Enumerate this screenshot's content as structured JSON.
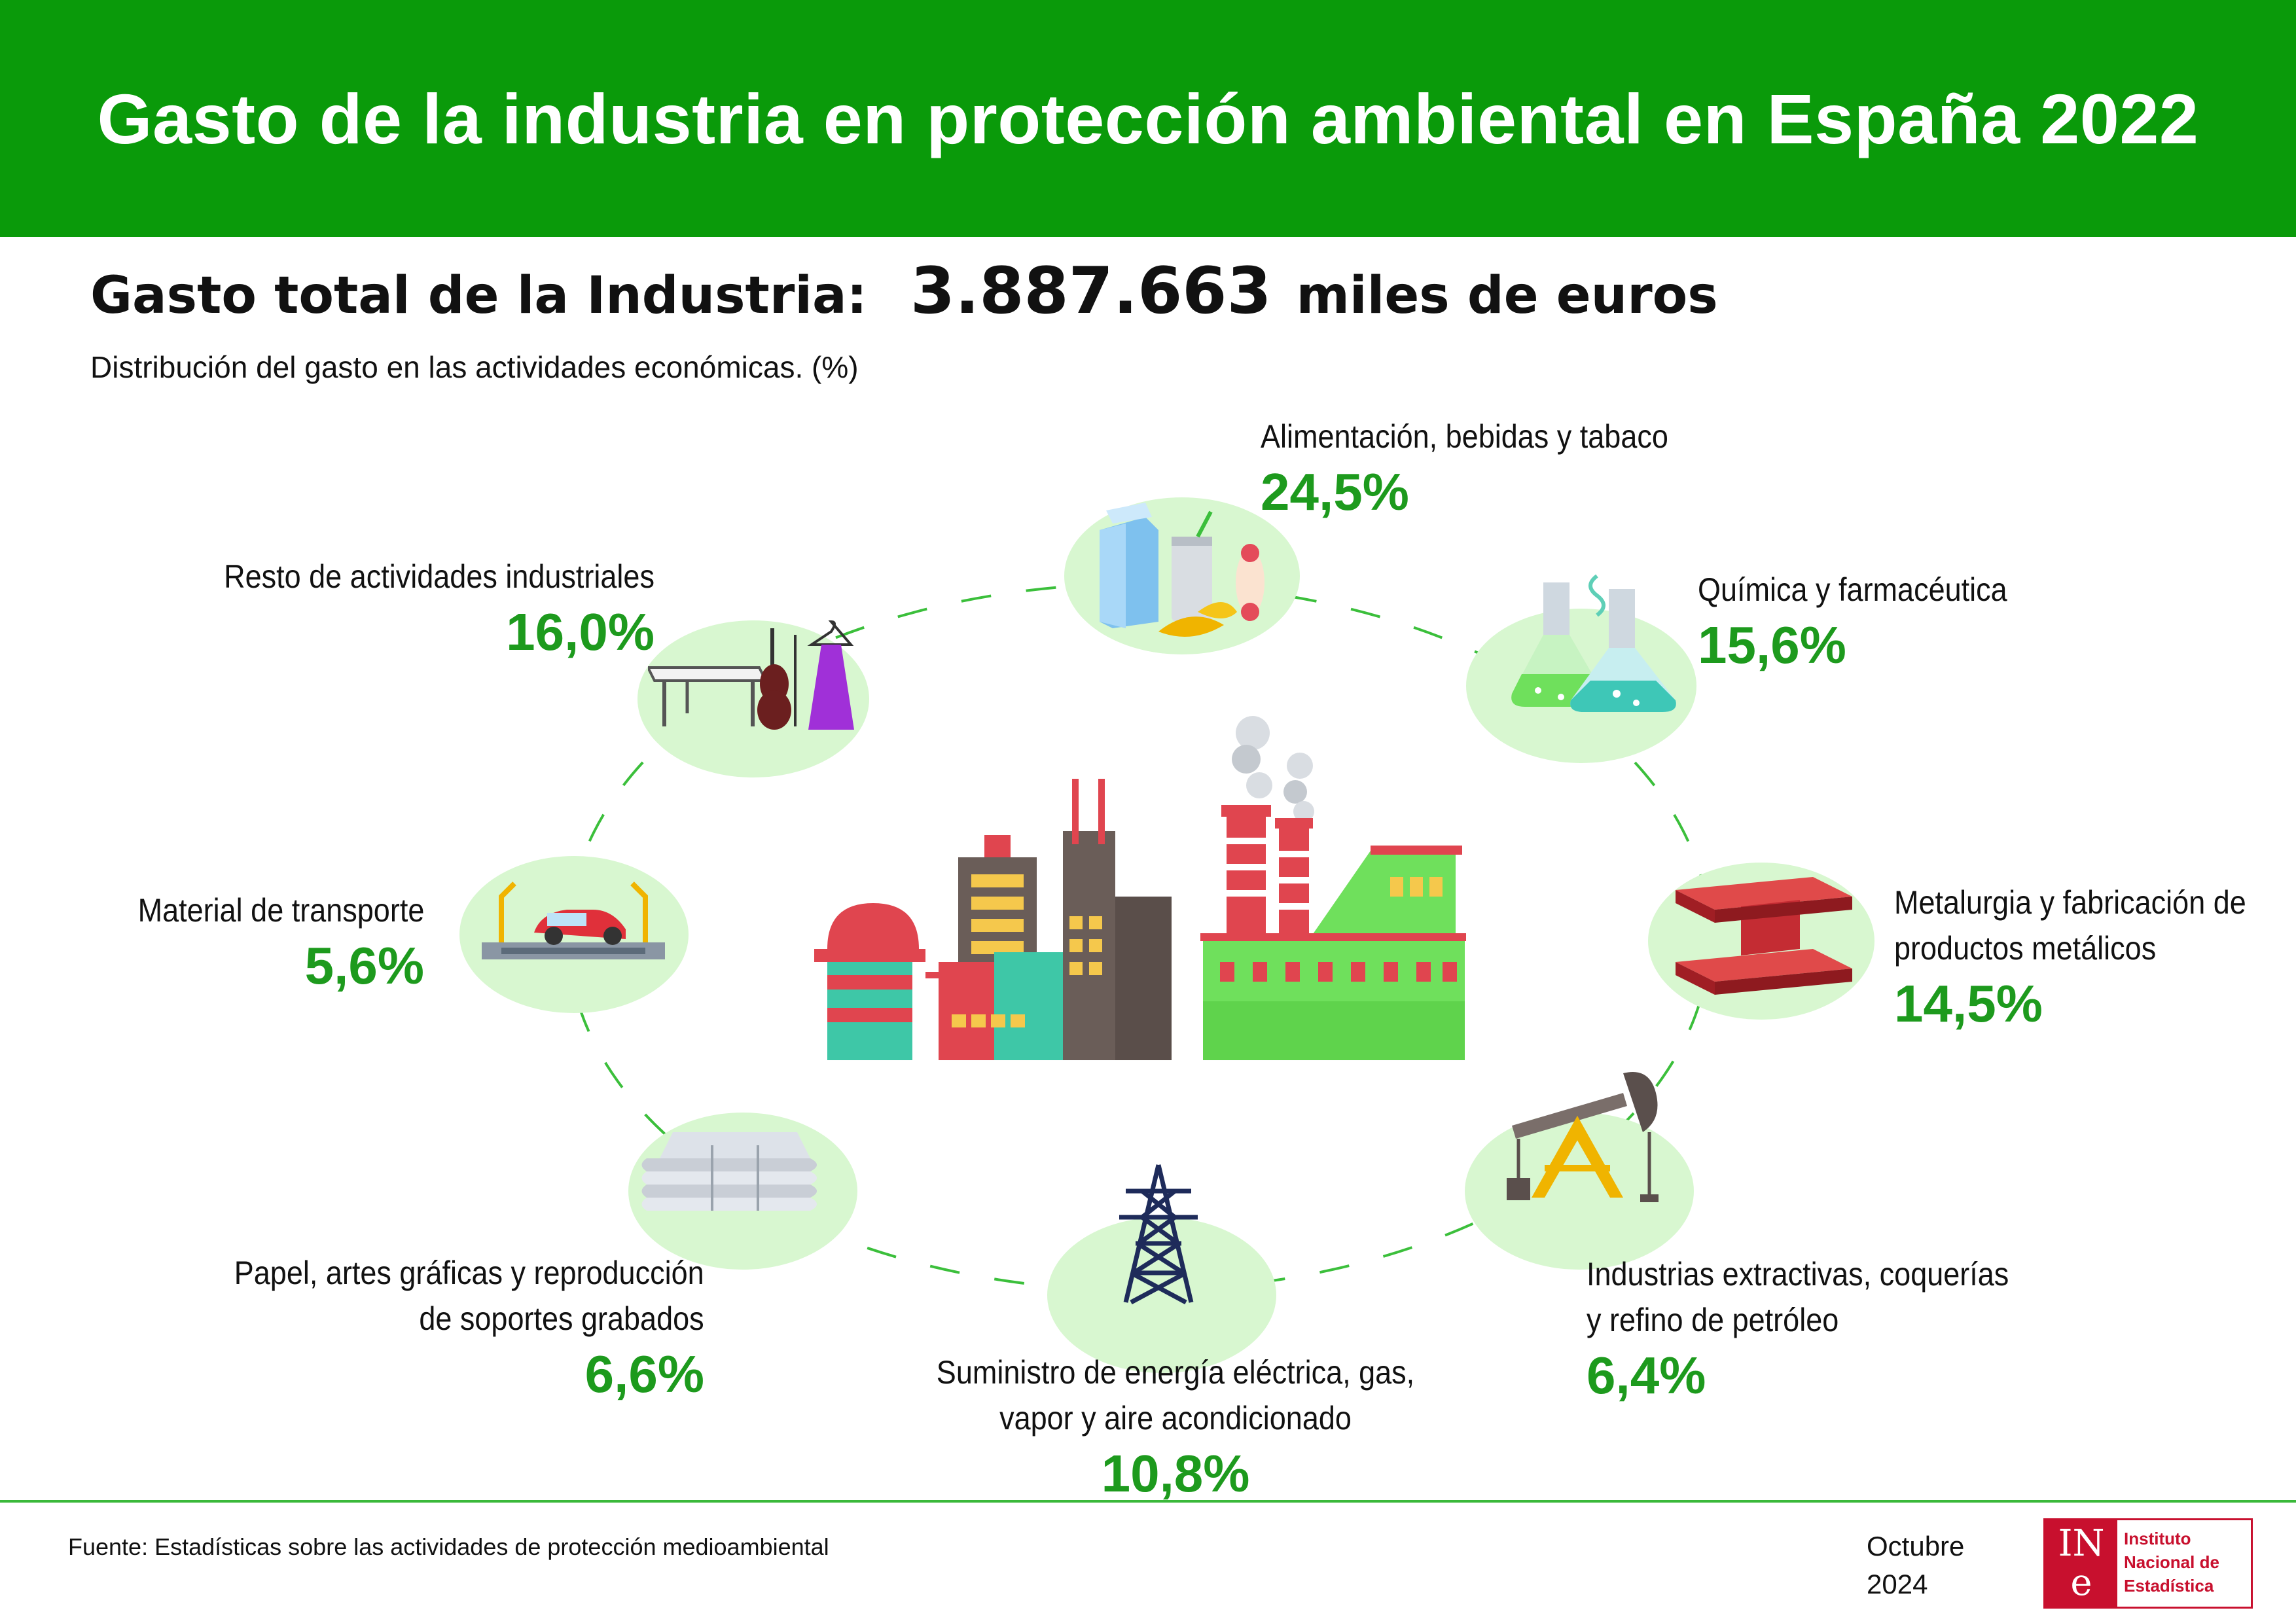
{
  "title": "Gasto de la industria en protección ambiental en España 2022",
  "total": {
    "label": "Gasto total de la Industria:",
    "value": "3.887.663",
    "unit": "miles de euros"
  },
  "subtitle": "Distribución del gasto en las actividades económicas. (%)",
  "categories": {
    "food": {
      "name": "Alimentación, bebidas y tabaco",
      "pct": "24,5%",
      "icon": "food-drinks-icon"
    },
    "chem": {
      "name": "Química y farmacéutica",
      "pct": "15,6%",
      "icon": "chemistry-flasks-icon"
    },
    "metal": {
      "name1": "Metalurgia y fabricación de",
      "name2": "productos metálicos",
      "pct": "14,5%",
      "icon": "steel-beam-icon"
    },
    "extract": {
      "name1": "Industrias extractivas, coquerías",
      "name2": "y refino de petróleo",
      "pct": "6,4%",
      "icon": "oil-pump-icon"
    },
    "energy": {
      "name1": "Suministro de energía eléctrica, gas,",
      "name2": "vapor y aire acondicionado",
      "pct": "10,8%",
      "icon": "power-tower-icon"
    },
    "paper": {
      "name1": "Papel, artes gráficas y reproducción",
      "name2": "de soportes grabados",
      "pct": "6,6%",
      "icon": "paper-stack-icon"
    },
    "transport": {
      "name": "Material de transporte",
      "pct": "5,6%",
      "icon": "car-assembly-icon"
    },
    "rest": {
      "name": "Resto de actividades industriales",
      "pct": "16,0%",
      "icon": "furniture-violin-dress-icon"
    }
  },
  "center_icon": "factory-icon",
  "footer": {
    "source": "Fuente: Estadísticas sobre las actividades de protección medioambiental",
    "month": "Octubre",
    "year": "2024",
    "logo_mark_top": "IN",
    "logo_mark_bottom": "e",
    "logo_line1": "Instituto",
    "logo_line2": "Nacional de",
    "logo_line3": "Estadística"
  },
  "colors": {
    "header_green": "#0a9a0a",
    "pct_green": "#1d9a1d",
    "circle_bg": "#d8f7d0",
    "ine_red": "#c8102e"
  }
}
